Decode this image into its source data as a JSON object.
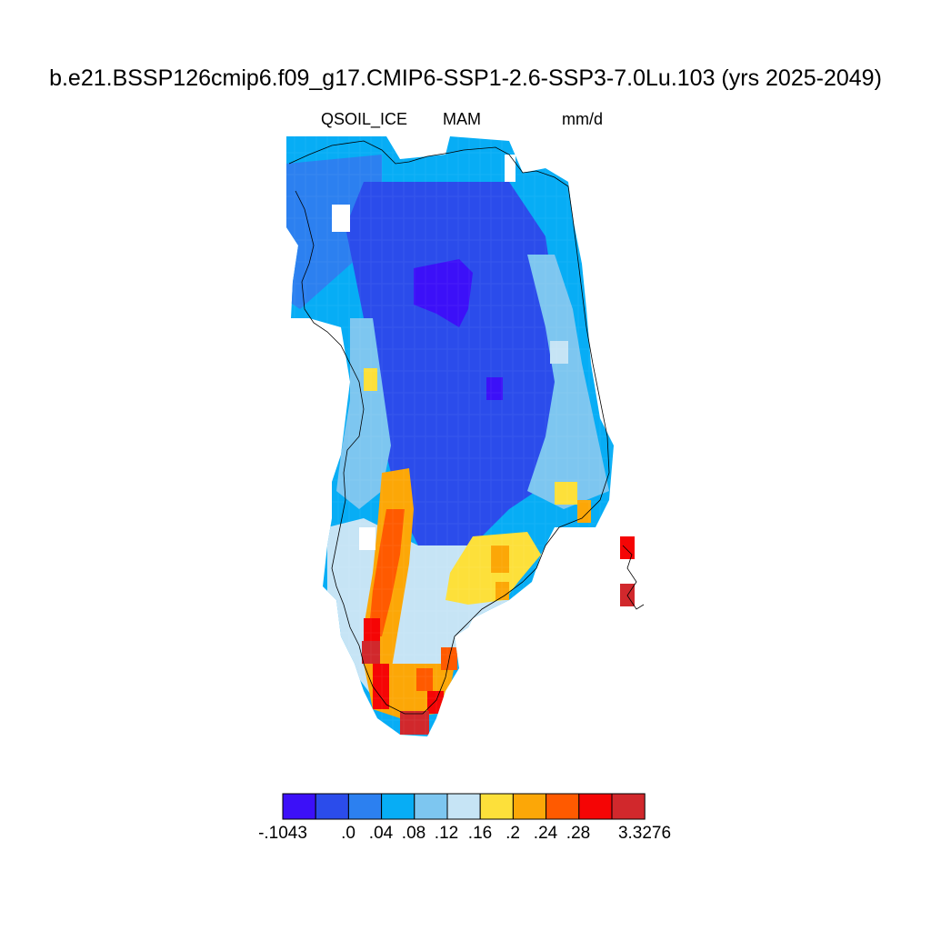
{
  "title": "b.e21.BSSP126cmip6.f09_g17.CMIP6-SSP1-2.6-SSP3-7.0Lu.103 (yrs 2025-2049)",
  "subtitle_left": "QSOIL_ICE",
  "subtitle_center": "MAM",
  "subtitle_right": "mm/d",
  "colorbar": {
    "colors": [
      "#3c10f8",
      "#2b4ceb",
      "#2c80f0",
      "#07adf5",
      "#7dc6f0",
      "#c6e4f5",
      "#fde03a",
      "#fca707",
      "#ff5a00",
      "#f50505",
      "#d1282c"
    ],
    "labels": [
      "-.1043",
      ".0",
      ".04",
      ".08",
      ".12",
      ".16",
      ".2",
      ".24",
      ".28",
      "3.3276"
    ]
  }
}
